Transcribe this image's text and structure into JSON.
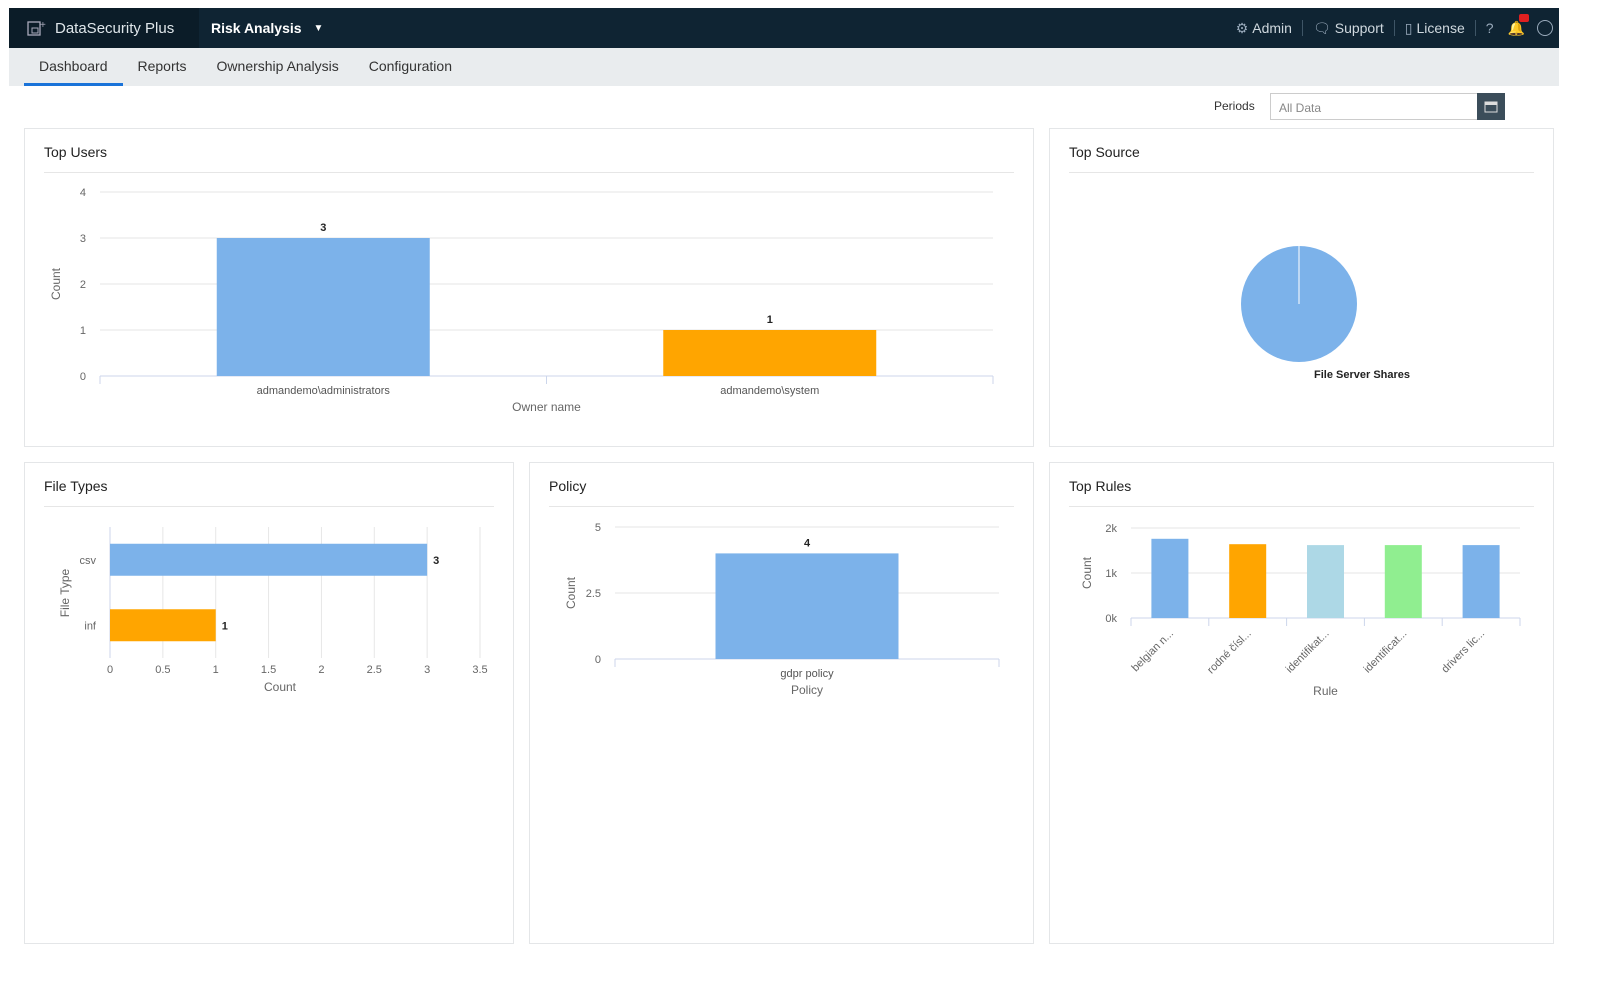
{
  "header": {
    "brand": "DataSecurity Plus",
    "module": "Risk Analysis",
    "links": [
      {
        "label": "Admin",
        "icon": "gear-icon"
      },
      {
        "label": "Support",
        "icon": "chat-icon"
      },
      {
        "label": "License",
        "icon": "license-icon"
      }
    ],
    "help": "?",
    "notifications_icon": "bell-icon",
    "user_icon": "user-icon"
  },
  "tabs": [
    {
      "label": "Dashboard",
      "active": true
    },
    {
      "label": "Reports"
    },
    {
      "label": "Ownership Analysis"
    },
    {
      "label": "Configuration"
    }
  ],
  "filter": {
    "label": "Periods",
    "value": "All Data"
  },
  "panels": {
    "top_users": "Top Users",
    "top_source": "Top Source",
    "file_types": "File Types",
    "policy": "Policy",
    "top_rules": "Top Rules"
  },
  "chart_data": [
    {
      "id": "top_users",
      "type": "bar",
      "title": "Top Users",
      "categories": [
        "admandemo\\administrators",
        "admandemo\\system"
      ],
      "values": [
        3,
        1
      ],
      "colors": [
        "#7cb2ea",
        "#ffa500"
      ],
      "xlabel": "Owner name",
      "ylabel": "Count",
      "ylim": [
        0,
        4
      ],
      "yticks": [
        "0",
        "1",
        "2",
        "3",
        "4"
      ],
      "data_labels": [
        "3",
        "1"
      ],
      "grid": true
    },
    {
      "id": "top_source",
      "type": "pie",
      "title": "Top Source",
      "categories": [
        "File Server Shares"
      ],
      "values": [
        100
      ],
      "colors": [
        "#7cb2ea"
      ]
    },
    {
      "id": "file_types",
      "type": "bar",
      "orientation": "horizontal",
      "title": "File Types",
      "categories": [
        "csv",
        "inf"
      ],
      "values": [
        3,
        1
      ],
      "colors": [
        "#7cb2ea",
        "#ffa500"
      ],
      "xlabel": "Count",
      "ylabel": "File Type",
      "xlim": [
        0,
        3.5
      ],
      "xticks": [
        "0",
        "0.5",
        "1",
        "1.5",
        "2",
        "2.5",
        "3",
        "3.5"
      ],
      "data_labels": [
        "3",
        "1"
      ],
      "grid": true
    },
    {
      "id": "policy",
      "type": "bar",
      "title": "Policy",
      "categories": [
        "gdpr policy"
      ],
      "values": [
        4
      ],
      "colors": [
        "#7cb2ea"
      ],
      "xlabel": "Policy",
      "ylabel": "Count",
      "ylim": [
        0,
        5
      ],
      "yticks": [
        "0",
        "2.5",
        "5"
      ],
      "data_labels": [
        "4"
      ],
      "grid": true
    },
    {
      "id": "top_rules",
      "type": "bar",
      "title": "Top Rules",
      "categories": [
        "belgian n...",
        "rodné čísl...",
        "identifikat...",
        "identificat...",
        "drivers lic..."
      ],
      "values": [
        1760,
        1640,
        1620,
        1620,
        1620
      ],
      "colors": [
        "#7cb2ea",
        "#ffa500",
        "#add8e6",
        "#90ee90",
        "#7cb2ea"
      ],
      "xlabel": "Rule",
      "ylabel": "Count",
      "ylim": [
        0,
        2000
      ],
      "yticks": [
        "0k",
        "1k",
        "2k"
      ],
      "grid": true
    }
  ]
}
